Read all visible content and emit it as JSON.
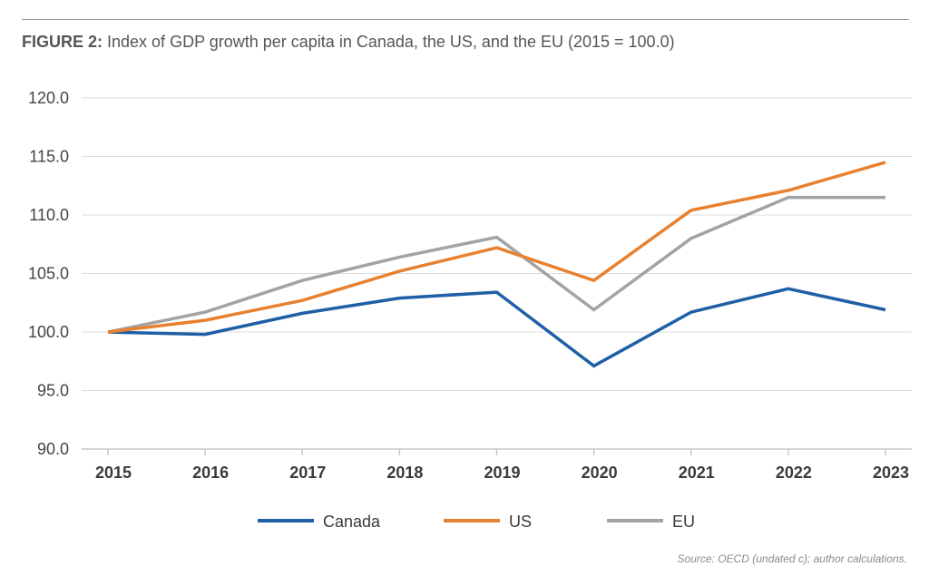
{
  "figure": {
    "label": "FIGURE 2:",
    "text": " Index of GDP growth per capita in Canada, the US, and the EU (2015 = 100.0)",
    "source": "Source: OECD (undated c); author calculations."
  },
  "chart_data": {
    "type": "line",
    "title": "FIGURE 2: Index of GDP growth per capita in Canada, the US, and the EU (2015 = 100.0)",
    "xlabel": "",
    "ylabel": "",
    "x": [
      "2015",
      "2016",
      "2017",
      "2018",
      "2019",
      "2020",
      "2021",
      "2022",
      "2023"
    ],
    "y_ticks": [
      "90.0",
      "95.0",
      "100.0",
      "105.0",
      "110.0",
      "115.0",
      "120.0"
    ],
    "ylim": [
      90,
      120
    ],
    "grid": "horizontal",
    "legend": "bottom",
    "series": [
      {
        "name": "Canada",
        "color": "#1f5fa6",
        "values": [
          100.0,
          99.8,
          101.6,
          102.9,
          103.4,
          97.1,
          101.7,
          103.7,
          101.9
        ]
      },
      {
        "name": "US",
        "color": "#e8812f",
        "values": [
          100.0,
          101.0,
          102.7,
          105.2,
          107.2,
          104.4,
          110.4,
          112.1,
          114.5
        ]
      },
      {
        "name": "EU",
        "color": "#a3a3a3",
        "values": [
          100.0,
          101.7,
          104.4,
          106.4,
          108.1,
          101.9,
          108.0,
          111.5,
          111.5
        ]
      }
    ]
  }
}
